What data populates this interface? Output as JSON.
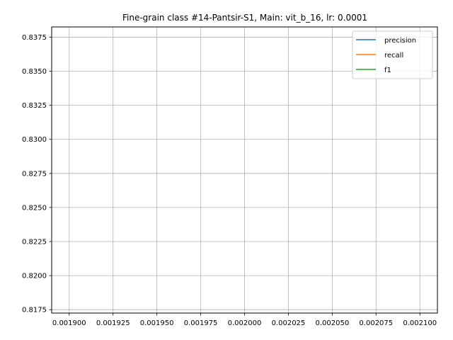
{
  "chart_data": {
    "type": "line",
    "title": "Fine-grain class #14-Pantsir-S1, Main: vit_b_16, lr: 0.0001",
    "xlabel": "",
    "ylabel": "",
    "xlim": [
      0.00189,
      0.00211
    ],
    "ylim": [
      0.81725,
      0.83825
    ],
    "x_ticks": [
      "0.001900",
      "0.001925",
      "0.001950",
      "0.001975",
      "0.002000",
      "0.002025",
      "0.002050",
      "0.002075",
      "0.002100"
    ],
    "x_tick_values": [
      0.0019,
      0.001925,
      0.00195,
      0.001975,
      0.002,
      0.002025,
      0.00205,
      0.002075,
      0.0021
    ],
    "y_ticks": [
      "0.8175",
      "0.8200",
      "0.8225",
      "0.8250",
      "0.8275",
      "0.8300",
      "0.8325",
      "0.8350",
      "0.8375"
    ],
    "y_tick_values": [
      0.8175,
      0.82,
      0.8225,
      0.825,
      0.8275,
      0.83,
      0.8325,
      0.835,
      0.8375
    ],
    "grid": true,
    "legend_position": "top-right",
    "series": [
      {
        "name": "precision",
        "color": "#1f77b4",
        "x": [],
        "y": []
      },
      {
        "name": "recall",
        "color": "#ff7f0e",
        "x": [],
        "y": []
      },
      {
        "name": "f1",
        "color": "#2ca02c",
        "x": [],
        "y": []
      }
    ]
  }
}
